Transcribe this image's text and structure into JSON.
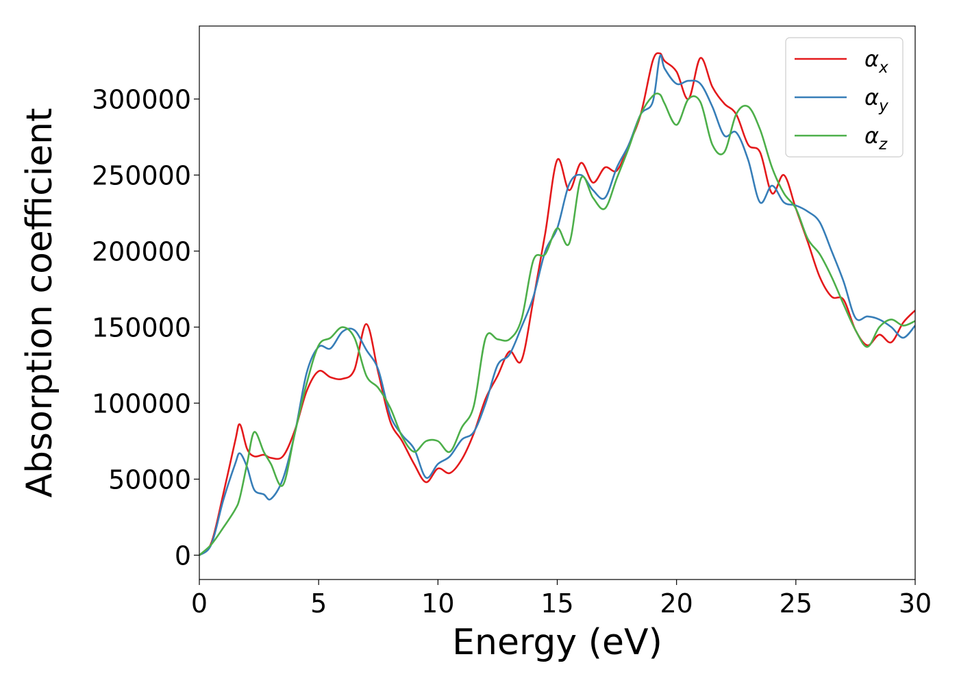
{
  "chart_data": {
    "type": "line",
    "title": "",
    "xlabel": "Energy (eV)",
    "ylabel": "Absorption coefficient",
    "xlim": [
      0,
      30
    ],
    "ylim": [
      -16000,
      348000
    ],
    "x_ticks": [
      0,
      5,
      10,
      15,
      20,
      25,
      30
    ],
    "y_ticks": [
      0,
      50000,
      100000,
      150000,
      200000,
      250000,
      300000
    ],
    "grid": false,
    "legend_position": "top-right",
    "x": [
      0,
      0.5,
      1,
      1.5,
      1.7,
      2,
      2.3,
      2.7,
      3,
      3.5,
      4,
      4.5,
      5,
      5.5,
      6,
      6.5,
      7,
      7.5,
      8,
      8.5,
      9,
      9.5,
      10,
      10.5,
      11,
      11.5,
      12,
      12.5,
      13,
      13.5,
      14,
      14.5,
      15,
      15.5,
      16,
      16.5,
      17,
      17.5,
      18,
      18.5,
      19,
      19.3,
      19.5,
      20,
      20.5,
      21,
      21.5,
      22,
      22.5,
      23,
      23.5,
      24,
      24.5,
      25,
      25.5,
      26,
      26.5,
      27,
      27.5,
      28,
      28.5,
      29,
      29.5,
      30
    ],
    "series": [
      {
        "name": "α_x",
        "base": "α",
        "sub": "x",
        "color": "#e41a1c",
        "values": [
          0,
          8000,
          40000,
          75000,
          86000,
          70000,
          65000,
          66000,
          64000,
          65000,
          82000,
          108000,
          121000,
          117000,
          116000,
          122000,
          152000,
          120000,
          88000,
          75000,
          60000,
          48000,
          57000,
          54000,
          63000,
          80000,
          103000,
          118000,
          134000,
          128000,
          168000,
          212000,
          260000,
          240000,
          258000,
          245000,
          255000,
          253000,
          270000,
          290000,
          325000,
          330000,
          325000,
          318000,
          300000,
          327000,
          308000,
          297000,
          290000,
          270000,
          265000,
          238000,
          250000,
          228000,
          206000,
          183000,
          170000,
          168000,
          148000,
          138000,
          145000,
          140000,
          153000,
          161000
        ]
      },
      {
        "name": "α_y",
        "base": "α",
        "sub": "y",
        "color": "#377eb8",
        "values": [
          0,
          7000,
          36000,
          60000,
          67000,
          58000,
          43000,
          40000,
          37000,
          50000,
          80000,
          120000,
          137000,
          136000,
          147000,
          148000,
          135000,
          122000,
          92000,
          79000,
          70000,
          51000,
          60000,
          65000,
          76000,
          81000,
          100000,
          125000,
          132000,
          150000,
          170000,
          200000,
          215000,
          244000,
          250000,
          240000,
          235000,
          255000,
          270000,
          290000,
          298000,
          328000,
          320000,
          310000,
          312000,
          310000,
          295000,
          276000,
          278000,
          260000,
          232000,
          243000,
          232000,
          230000,
          226000,
          219000,
          200000,
          180000,
          156000,
          157000,
          155000,
          150000,
          143000,
          151000
        ]
      },
      {
        "name": "α_z",
        "base": "α",
        "sub": "z",
        "color": "#4daf4a",
        "values": [
          0,
          7000,
          18000,
          30000,
          38000,
          60000,
          81000,
          68000,
          60000,
          46000,
          80000,
          113000,
          138000,
          143000,
          150000,
          143000,
          118000,
          110000,
          97000,
          78000,
          68000,
          75000,
          75000,
          68000,
          84000,
          98000,
          143000,
          142000,
          142000,
          155000,
          194000,
          198000,
          215000,
          205000,
          248000,
          235000,
          228000,
          248000,
          268000,
          290000,
          302000,
          303000,
          297000,
          283000,
          300000,
          298000,
          270000,
          265000,
          290000,
          295000,
          280000,
          255000,
          238000,
          228000,
          208000,
          198000,
          183000,
          165000,
          148000,
          137000,
          150000,
          155000,
          151000,
          154000
        ]
      }
    ]
  }
}
